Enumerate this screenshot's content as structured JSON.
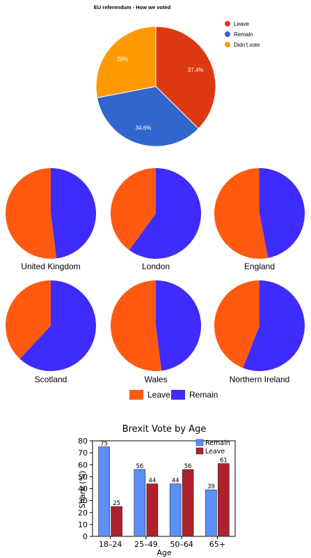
{
  "chart_data": [
    {
      "type": "pie",
      "title": "EU referendum - How we voted",
      "labels": [
        "Leave",
        "Remain",
        "Didn't vote"
      ],
      "legend_labels": [
        "Leave",
        "Remain",
        "Didn't.vote"
      ],
      "values": [
        37.4,
        34.6,
        28
      ],
      "data_labels": [
        "37.4%",
        "34.6%",
        "28%"
      ],
      "colors": [
        "#dc3912",
        "#3366cc",
        "#ff9900"
      ],
      "legend": "right"
    },
    {
      "type": "pie",
      "title": "",
      "legend_labels": [
        "Leave",
        "Remain"
      ],
      "colors": [
        "#ff5a0f",
        "#3d2cfd"
      ],
      "legend": "bottom",
      "charts": [
        {
          "name": "United Kingdom",
          "leave": 52,
          "remain": 48
        },
        {
          "name": "London",
          "leave": 40,
          "remain": 60
        },
        {
          "name": "England",
          "leave": 53,
          "remain": 47
        },
        {
          "name": "Scotland",
          "leave": 38,
          "remain": 62
        },
        {
          "name": "Wales",
          "leave": 52,
          "remain": 48
        },
        {
          "name": "Northern Ireland",
          "leave": 44,
          "remain": 56
        }
      ]
    },
    {
      "type": "bar",
      "title": "Brexit Vote by Age",
      "xlabel": "Age",
      "ylabel": "Share (%)",
      "categories": [
        "18–24",
        "25–49",
        "50–64",
        "65+"
      ],
      "series": [
        {
          "name": "Remain",
          "values": [
            75,
            56,
            44,
            39
          ],
          "color": "#5b8ff9"
        },
        {
          "name": "Leave",
          "values": [
            25,
            44,
            56,
            61
          ],
          "color": "#b0202d"
        }
      ],
      "ylim": [
        0,
        80
      ],
      "yticks": [
        0,
        10,
        20,
        30,
        40,
        50,
        60,
        70,
        80
      ],
      "legend": "top-right",
      "grid": false
    }
  ]
}
